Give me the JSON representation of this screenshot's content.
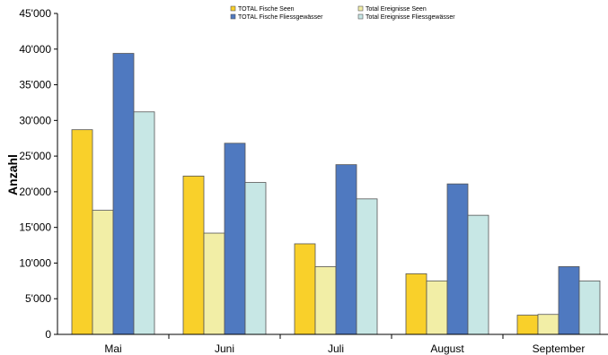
{
  "chart_data": {
    "type": "bar",
    "categories": [
      "Mai",
      "Juni",
      "Juli",
      "August",
      "September"
    ],
    "series": [
      {
        "name": "TOTAL Fische Seen",
        "values": [
          28700,
          22200,
          12700,
          8500,
          2700
        ],
        "color": "#f9d02a"
      },
      {
        "name": "Total Ereignisse Seen",
        "values": [
          17400,
          14200,
          9500,
          7500,
          2800
        ],
        "color": "#f2eea6"
      },
      {
        "name": "TOTAL Fische Fliessgewässer",
        "values": [
          39400,
          26800,
          23800,
          21100,
          9500
        ],
        "color": "#4f79c0"
      },
      {
        "name": "Total Ereignisse Fliessgewässer",
        "values": [
          31200,
          21300,
          19000,
          16700,
          7500
        ],
        "color": "#c7e7e5"
      }
    ],
    "yticks": [
      "0",
      "5'000",
      "10'000",
      "15'000",
      "20'000",
      "25'000",
      "30'000",
      "35'000",
      "40'000",
      "45'000"
    ],
    "ylim": [
      0,
      45000
    ],
    "ylabel": "Anzahl",
    "xlabel": "",
    "legend_position": "top-right",
    "grid": false
  }
}
